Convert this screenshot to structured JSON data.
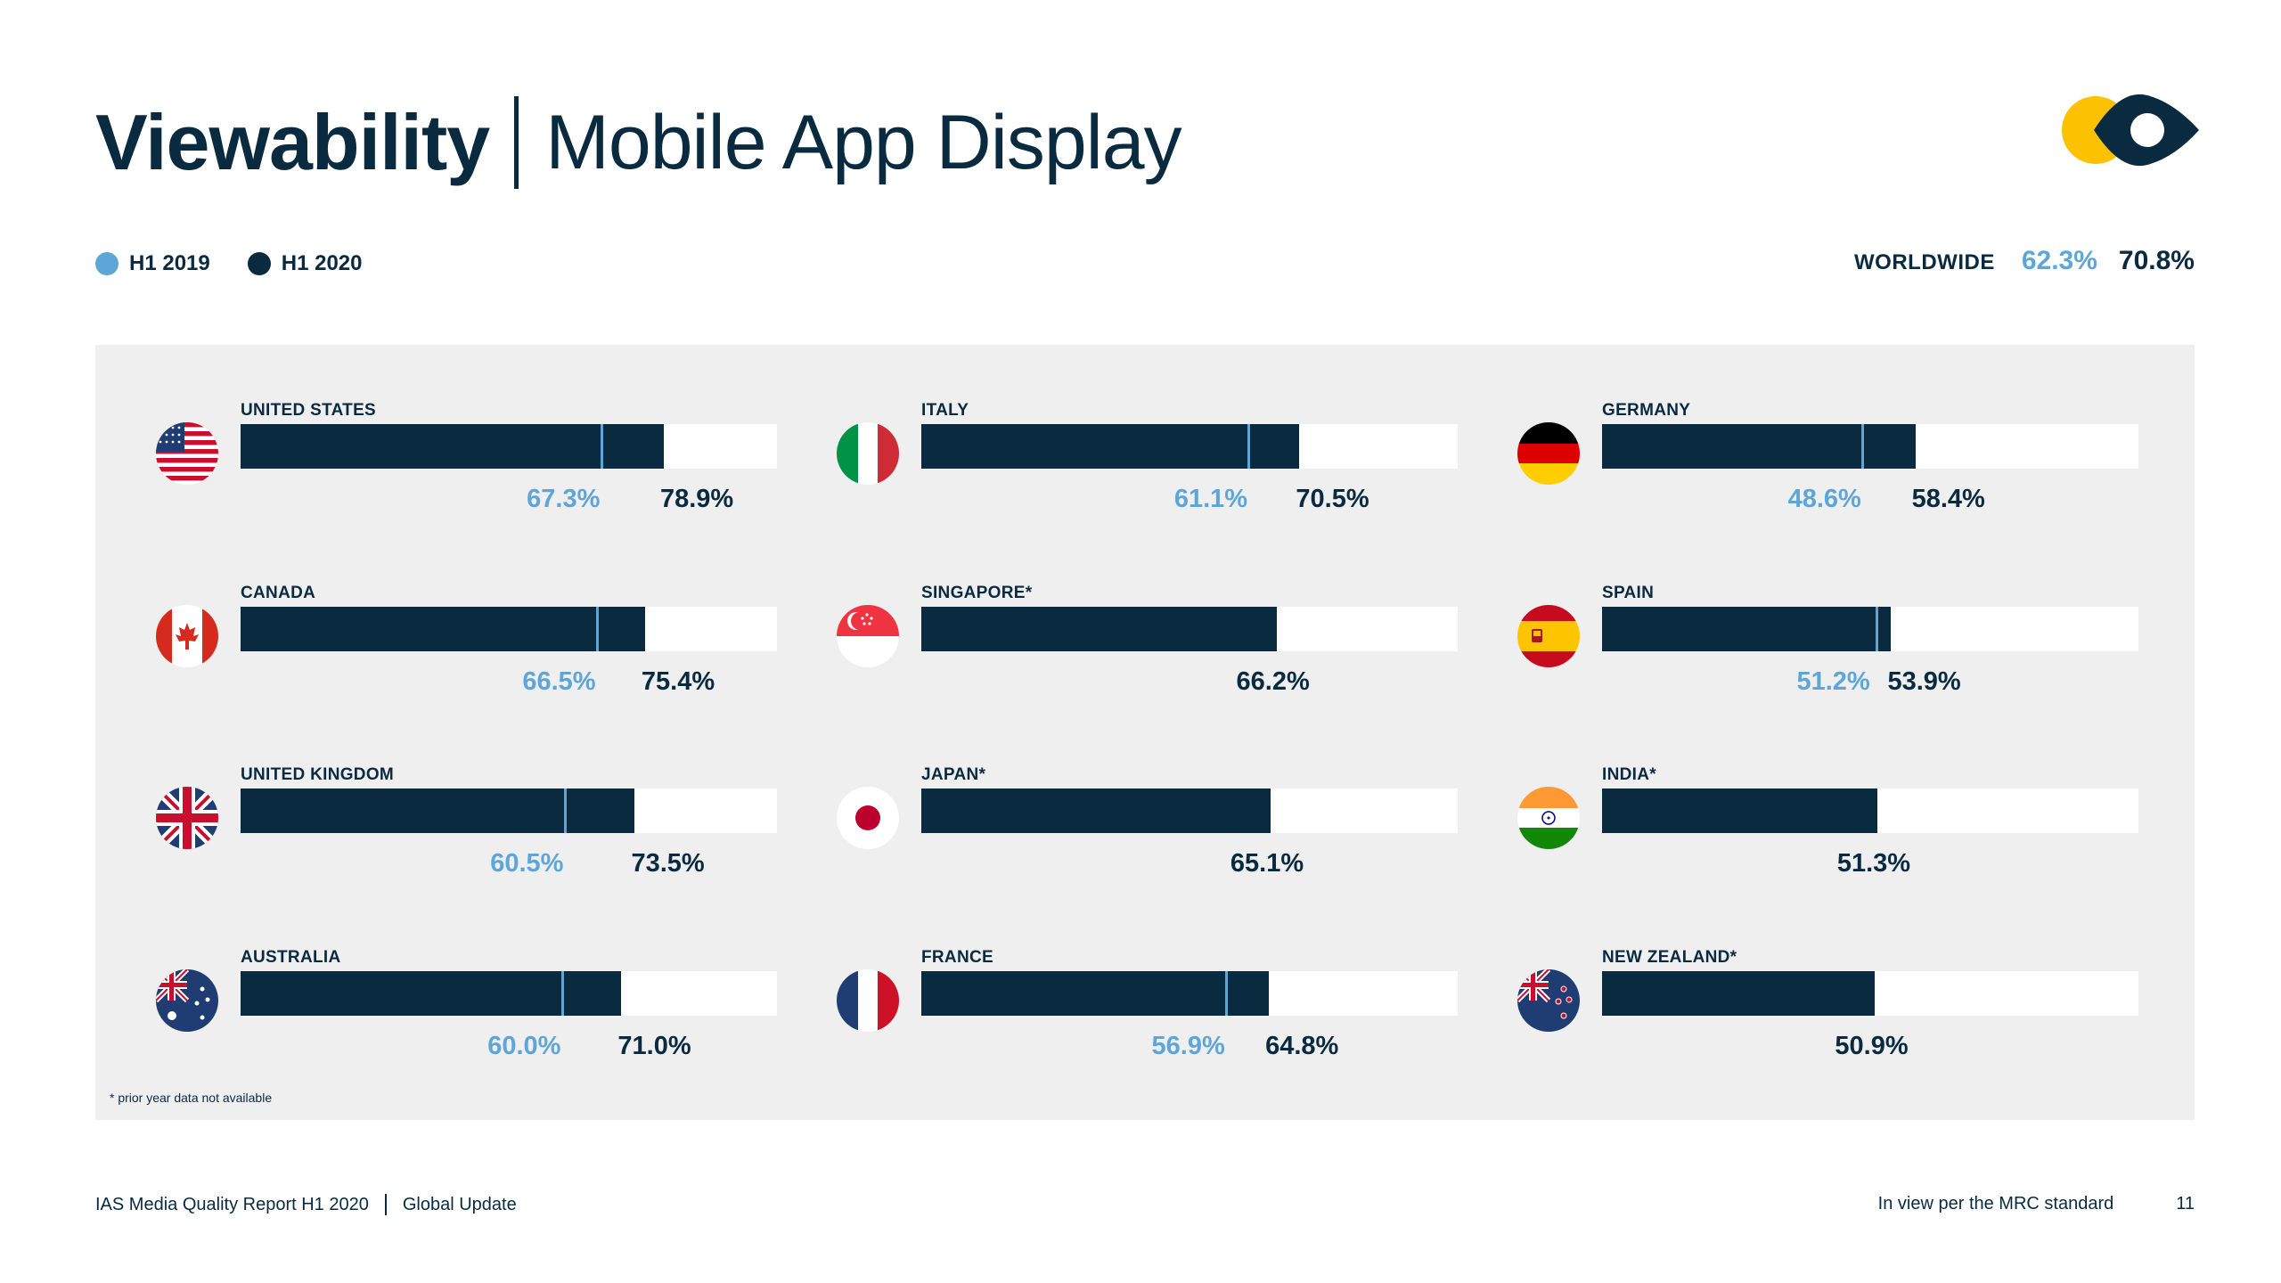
{
  "header": {
    "title": "Viewability",
    "subtitle": "Mobile App Display"
  },
  "legend": [
    {
      "label": "H1 2019",
      "color": "#5ea5d8"
    },
    {
      "label": "H1 2020",
      "color": "#0a2a40"
    }
  ],
  "worldwide": {
    "label": "WORLDWIDE",
    "h1_2019": "62.3%",
    "h1_2020": "70.8%"
  },
  "footnote": "* prior year data not available",
  "footer": {
    "report": "IAS Media Quality Report H1 2020",
    "section": "Global Update",
    "note": "In view per the MRC standard",
    "page": "11"
  },
  "colors": {
    "navy": "#0a2a40",
    "light_blue": "#5ea5d8",
    "panel": "#efefef",
    "logo_yellow": "#fcc100"
  },
  "chart_data": {
    "type": "bar",
    "orientation": "horizontal",
    "xlim": [
      0,
      100
    ],
    "series_names": [
      "H1 2019",
      "H1 2020"
    ],
    "countries": [
      {
        "name": "UNITED STATES",
        "flag": "us-flag-icon",
        "h1_2019": 67.3,
        "h1_2020": 78.9,
        "h1_2019_label": "67.3%",
        "h1_2020_label": "78.9%"
      },
      {
        "name": "CANADA",
        "flag": "canada-flag-icon",
        "h1_2019": 66.5,
        "h1_2020": 75.4,
        "h1_2019_label": "66.5%",
        "h1_2020_label": "75.4%"
      },
      {
        "name": "UNITED KINGDOM",
        "flag": "uk-flag-icon",
        "h1_2019": 60.5,
        "h1_2020": 73.5,
        "h1_2019_label": "60.5%",
        "h1_2020_label": "73.5%"
      },
      {
        "name": "AUSTRALIA",
        "flag": "australia-flag-icon",
        "h1_2019": 60.0,
        "h1_2020": 71.0,
        "h1_2019_label": "60.0%",
        "h1_2020_label": "71.0%"
      },
      {
        "name": "ITALY",
        "flag": "italy-flag-icon",
        "h1_2019": 61.1,
        "h1_2020": 70.5,
        "h1_2019_label": "61.1%",
        "h1_2020_label": "70.5%"
      },
      {
        "name": "SINGAPORE*",
        "flag": "singapore-flag-icon",
        "h1_2019": null,
        "h1_2020": 66.2,
        "h1_2019_label": "",
        "h1_2020_label": "66.2%"
      },
      {
        "name": "JAPAN*",
        "flag": "japan-flag-icon",
        "h1_2019": null,
        "h1_2020": 65.1,
        "h1_2019_label": "",
        "h1_2020_label": "65.1%"
      },
      {
        "name": "FRANCE",
        "flag": "france-flag-icon",
        "h1_2019": 56.9,
        "h1_2020": 64.8,
        "h1_2019_label": "56.9%",
        "h1_2020_label": "64.8%"
      },
      {
        "name": "GERMANY",
        "flag": "germany-flag-icon",
        "h1_2019": 48.6,
        "h1_2020": 58.4,
        "h1_2019_label": "48.6%",
        "h1_2020_label": "58.4%"
      },
      {
        "name": "SPAIN",
        "flag": "spain-flag-icon",
        "h1_2019": 51.2,
        "h1_2020": 53.9,
        "h1_2019_label": "51.2%",
        "h1_2020_label": "53.9%"
      },
      {
        "name": "INDIA*",
        "flag": "india-flag-icon",
        "h1_2019": null,
        "h1_2020": 51.3,
        "h1_2019_label": "",
        "h1_2020_label": "51.3%"
      },
      {
        "name": "NEW ZEALAND*",
        "flag": "new-zealand-flag-icon",
        "h1_2019": null,
        "h1_2020": 50.9,
        "h1_2019_label": "",
        "h1_2020_label": "50.9%"
      }
    ]
  }
}
